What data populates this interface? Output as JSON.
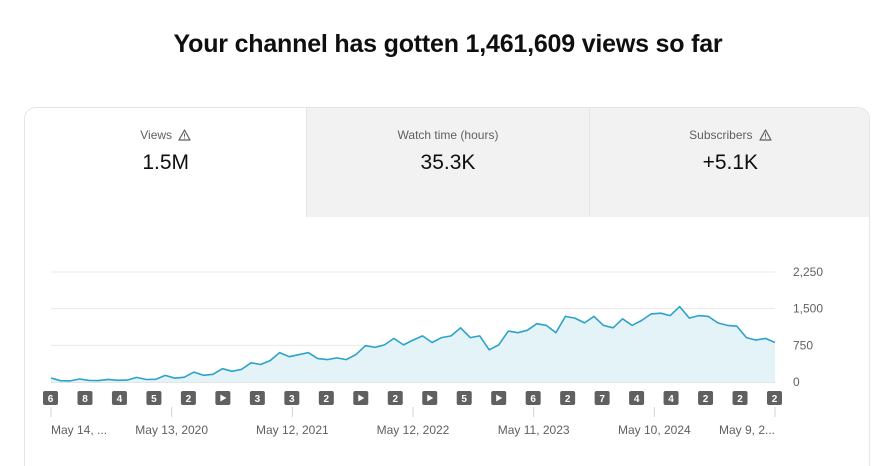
{
  "headline": "Your channel has gotten 1,461,609 views so far",
  "tabs": [
    {
      "label": "Views",
      "value": "1.5M",
      "warning": true
    },
    {
      "label": "Watch time (hours)",
      "value": "35.3K",
      "warning": false
    },
    {
      "label": "Subscribers",
      "value": "+5.1K",
      "warning": true
    }
  ],
  "colors": {
    "line": "#2ba3c8",
    "fill": "#e4f3f8",
    "marker": "#606060"
  },
  "chart_data": {
    "type": "area",
    "y_ticks": [
      "2,250",
      "1,500",
      "750",
      "0"
    ],
    "ylim": [
      0,
      2250
    ],
    "x_ticks": [
      "May 14, ...",
      "May 13, 2020",
      "May 12, 2021",
      "May 12, 2022",
      "May 11, 2023",
      "May 10, 2024",
      "May 9, 2..."
    ],
    "series": [
      {
        "values": [
          60,
          40,
          35,
          45,
          50,
          45,
          40,
          55,
          60,
          70,
          80,
          85,
          100,
          120,
          140,
          160,
          180,
          200,
          230,
          260,
          300,
          350,
          400,
          480,
          560,
          560,
          600,
          560,
          520,
          500,
          450,
          500,
          600,
          700,
          750,
          800,
          850,
          800,
          900,
          900,
          850,
          950,
          900,
          1150,
          950,
          900,
          700,
          800,
          1000,
          1050,
          1100,
          1150,
          1200,
          1050,
          1300,
          1350,
          1250,
          1300,
          1200,
          1150,
          1250,
          1200,
          1300,
          1350,
          1450,
          1400,
          1500,
          1350,
          1400,
          1300,
          1250,
          1200,
          1100,
          950,
          900,
          850,
          850
        ]
      }
    ],
    "markers": [
      {
        "label": "6",
        "type": "count"
      },
      {
        "label": "8",
        "type": "count"
      },
      {
        "label": "4",
        "type": "count"
      },
      {
        "label": "5",
        "type": "count"
      },
      {
        "label": "2",
        "type": "count"
      },
      {
        "label": "",
        "type": "play"
      },
      {
        "label": "3",
        "type": "count"
      },
      {
        "label": "3",
        "type": "count"
      },
      {
        "label": "2",
        "type": "count"
      },
      {
        "label": "",
        "type": "play"
      },
      {
        "label": "2",
        "type": "count"
      },
      {
        "label": "",
        "type": "play"
      },
      {
        "label": "5",
        "type": "count"
      },
      {
        "label": "",
        "type": "play"
      },
      {
        "label": "6",
        "type": "count"
      },
      {
        "label": "2",
        "type": "count"
      },
      {
        "label": "7",
        "type": "count"
      },
      {
        "label": "4",
        "type": "count"
      },
      {
        "label": "4",
        "type": "count"
      },
      {
        "label": "2",
        "type": "count"
      },
      {
        "label": "2",
        "type": "count"
      },
      {
        "label": "2",
        "type": "count"
      }
    ]
  }
}
